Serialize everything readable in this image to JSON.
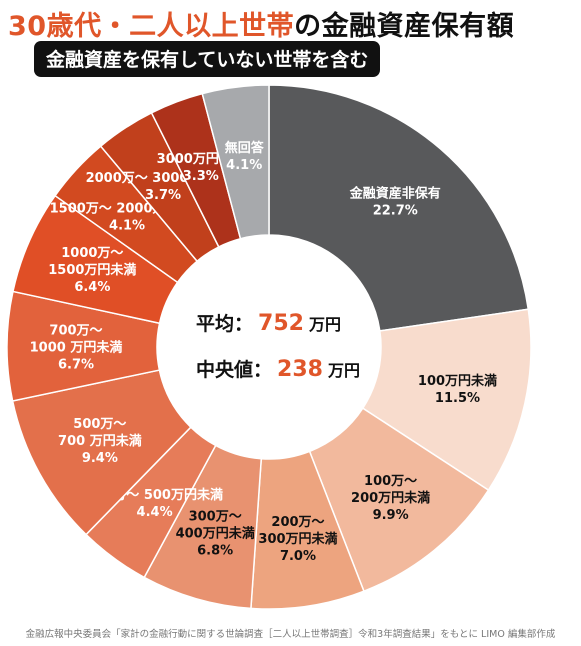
{
  "title_highlight": "30歳代・二人以上世帯",
  "title_rest": "の金融資産保有額",
  "subtitle": "金融資産を保有していない世帯を含む",
  "center": {
    "avg_label": "平均：",
    "avg_value": "752",
    "median_label": "中央値：",
    "median_value": "238",
    "unit": "万円"
  },
  "source": "金融広報中央委員会「家計の金融行動に関する世論調査［二人以上世帯調査］令和3年調査結果」をもとに LIMO 編集部作成",
  "chart_data": {
    "type": "pie",
    "style": "donut",
    "unit": "%",
    "slices": [
      {
        "label": [
          "金融資産非保有"
        ],
        "value": 22.7,
        "display": "22.7%",
        "color": "#58595b",
        "text": "#ffffff"
      },
      {
        "label": [
          "100万円未満"
        ],
        "value": 11.5,
        "display": "11.5%",
        "color": "#f8dccd",
        "text": "#111111"
      },
      {
        "label": [
          "100万～",
          "200万円未満"
        ],
        "value": 9.9,
        "display": "9.9%",
        "color": "#f2b99d",
        "text": "#111111"
      },
      {
        "label": [
          "200万～",
          "300万円未満"
        ],
        "value": 7.0,
        "display": "7.0%",
        "color": "#eda47f",
        "text": "#111111"
      },
      {
        "label": [
          "300万～",
          "400万円未満"
        ],
        "value": 6.8,
        "display": "6.8%",
        "color": "#e89270",
        "text": "#111111"
      },
      {
        "label": [
          "400万～ 500万円未満"
        ],
        "value": 4.4,
        "display": "4.4%",
        "color": "#e67c59",
        "text": "#ffffff"
      },
      {
        "label": [
          "500万～",
          "700 万円未満"
        ],
        "value": 9.4,
        "display": "9.4%",
        "color": "#e3704b",
        "text": "#ffffff"
      },
      {
        "label": [
          "700万～",
          "1000 万円未満"
        ],
        "value": 6.7,
        "display": "6.7%",
        "color": "#e2623c",
        "text": "#ffffff"
      },
      {
        "label": [
          "1000万～",
          "1500万円未満"
        ],
        "value": 6.4,
        "display": "6.4%",
        "color": "#e04f26",
        "text": "#ffffff"
      },
      {
        "label": [
          "1500万～ 2000万円未満"
        ],
        "value": 4.1,
        "display": "4.1%",
        "color": "#d24a20",
        "text": "#ffffff"
      },
      {
        "label": [
          "2000万～ 3000万円未満"
        ],
        "value": 3.7,
        "display": "3.7%",
        "color": "#c1401c",
        "text": "#ffffff"
      },
      {
        "label": [
          "3000万円以上"
        ],
        "value": 3.3,
        "display": "3.3%",
        "color": "#ad321b",
        "text": "#ffffff"
      },
      {
        "label": [
          "無回答"
        ],
        "value": 4.1,
        "display": "4.1%",
        "color": "#a7a9ac",
        "text": "#ffffff"
      }
    ]
  }
}
